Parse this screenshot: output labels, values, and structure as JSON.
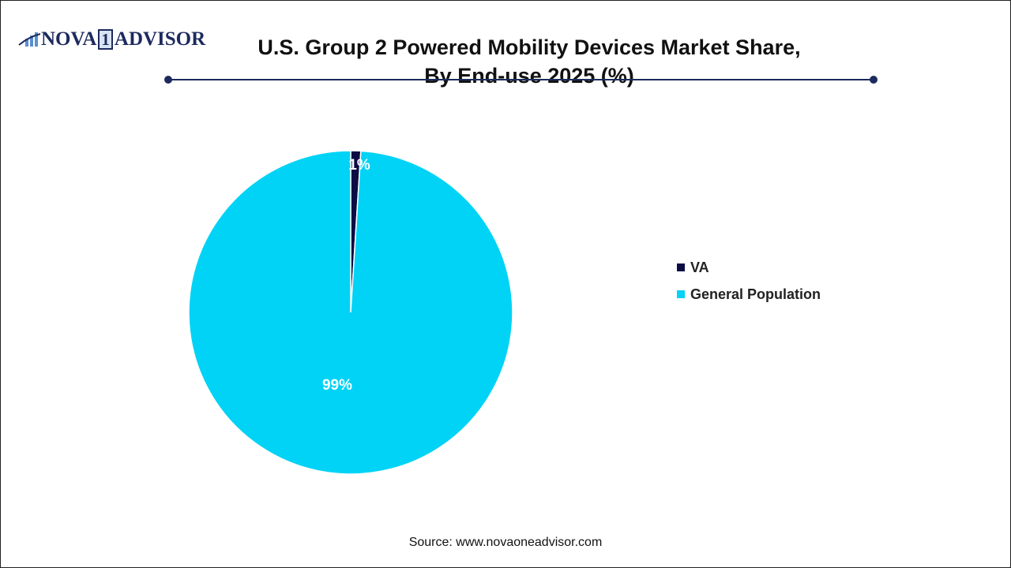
{
  "logo": {
    "left": "NOVA",
    "box": "1",
    "right": "ADVISOR"
  },
  "title_line1": "U.S. Group 2 Powered Mobility Devices Market Share,",
  "title_line2": "By End-use 2025 (%)",
  "source": "Source: www.novaoneadvisor.com",
  "chart_data": {
    "type": "pie",
    "title": "U.S. Group 2 Powered Mobility Devices Market Share, By End-use 2025 (%)",
    "categories": [
      "VA",
      "General Population"
    ],
    "values": [
      1,
      99
    ],
    "labels": [
      "1%",
      "99%"
    ],
    "colors": [
      "#0c0c44",
      "#00d3f6"
    ],
    "legend": "right",
    "start_angle": "12 o'clock, clockwise"
  }
}
